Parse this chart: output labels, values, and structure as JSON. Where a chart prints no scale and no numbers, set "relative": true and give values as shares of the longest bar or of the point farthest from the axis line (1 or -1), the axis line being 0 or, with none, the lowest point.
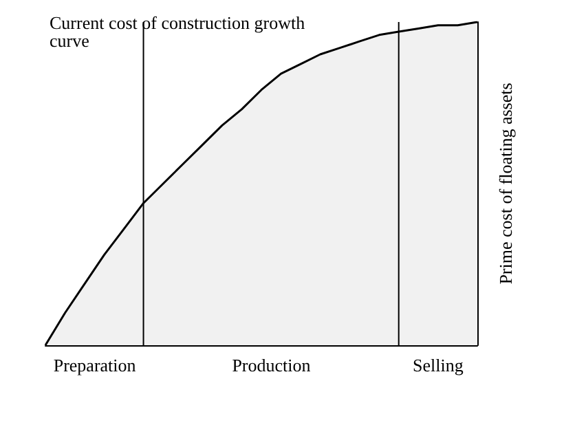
{
  "chart_data": {
    "type": "area",
    "relative": true,
    "ylabel": "Prime cost of floating assets",
    "annotations": [
      "Current cost of construction growth curve",
      "Preparation",
      "Production",
      "Selling"
    ],
    "categories": [
      null,
      null,
      null,
      null,
      null,
      null,
      null,
      null,
      null,
      null,
      null,
      null,
      null,
      null,
      null,
      null,
      null,
      null,
      null,
      null,
      null,
      null,
      null
    ],
    "series": [
      {
        "color": "#000000",
        "values": [
          0,
          0.1,
          0.19,
          0.28,
          0.36,
          0.44,
          0.5,
          0.56,
          0.62,
          0.68,
          0.73,
          0.79,
          0.84,
          0.87,
          0.9,
          0.92,
          0.94,
          0.96,
          0.97,
          0.98,
          0.99,
          0.99,
          1
        ]
      }
    ],
    "grid": false
  }
}
